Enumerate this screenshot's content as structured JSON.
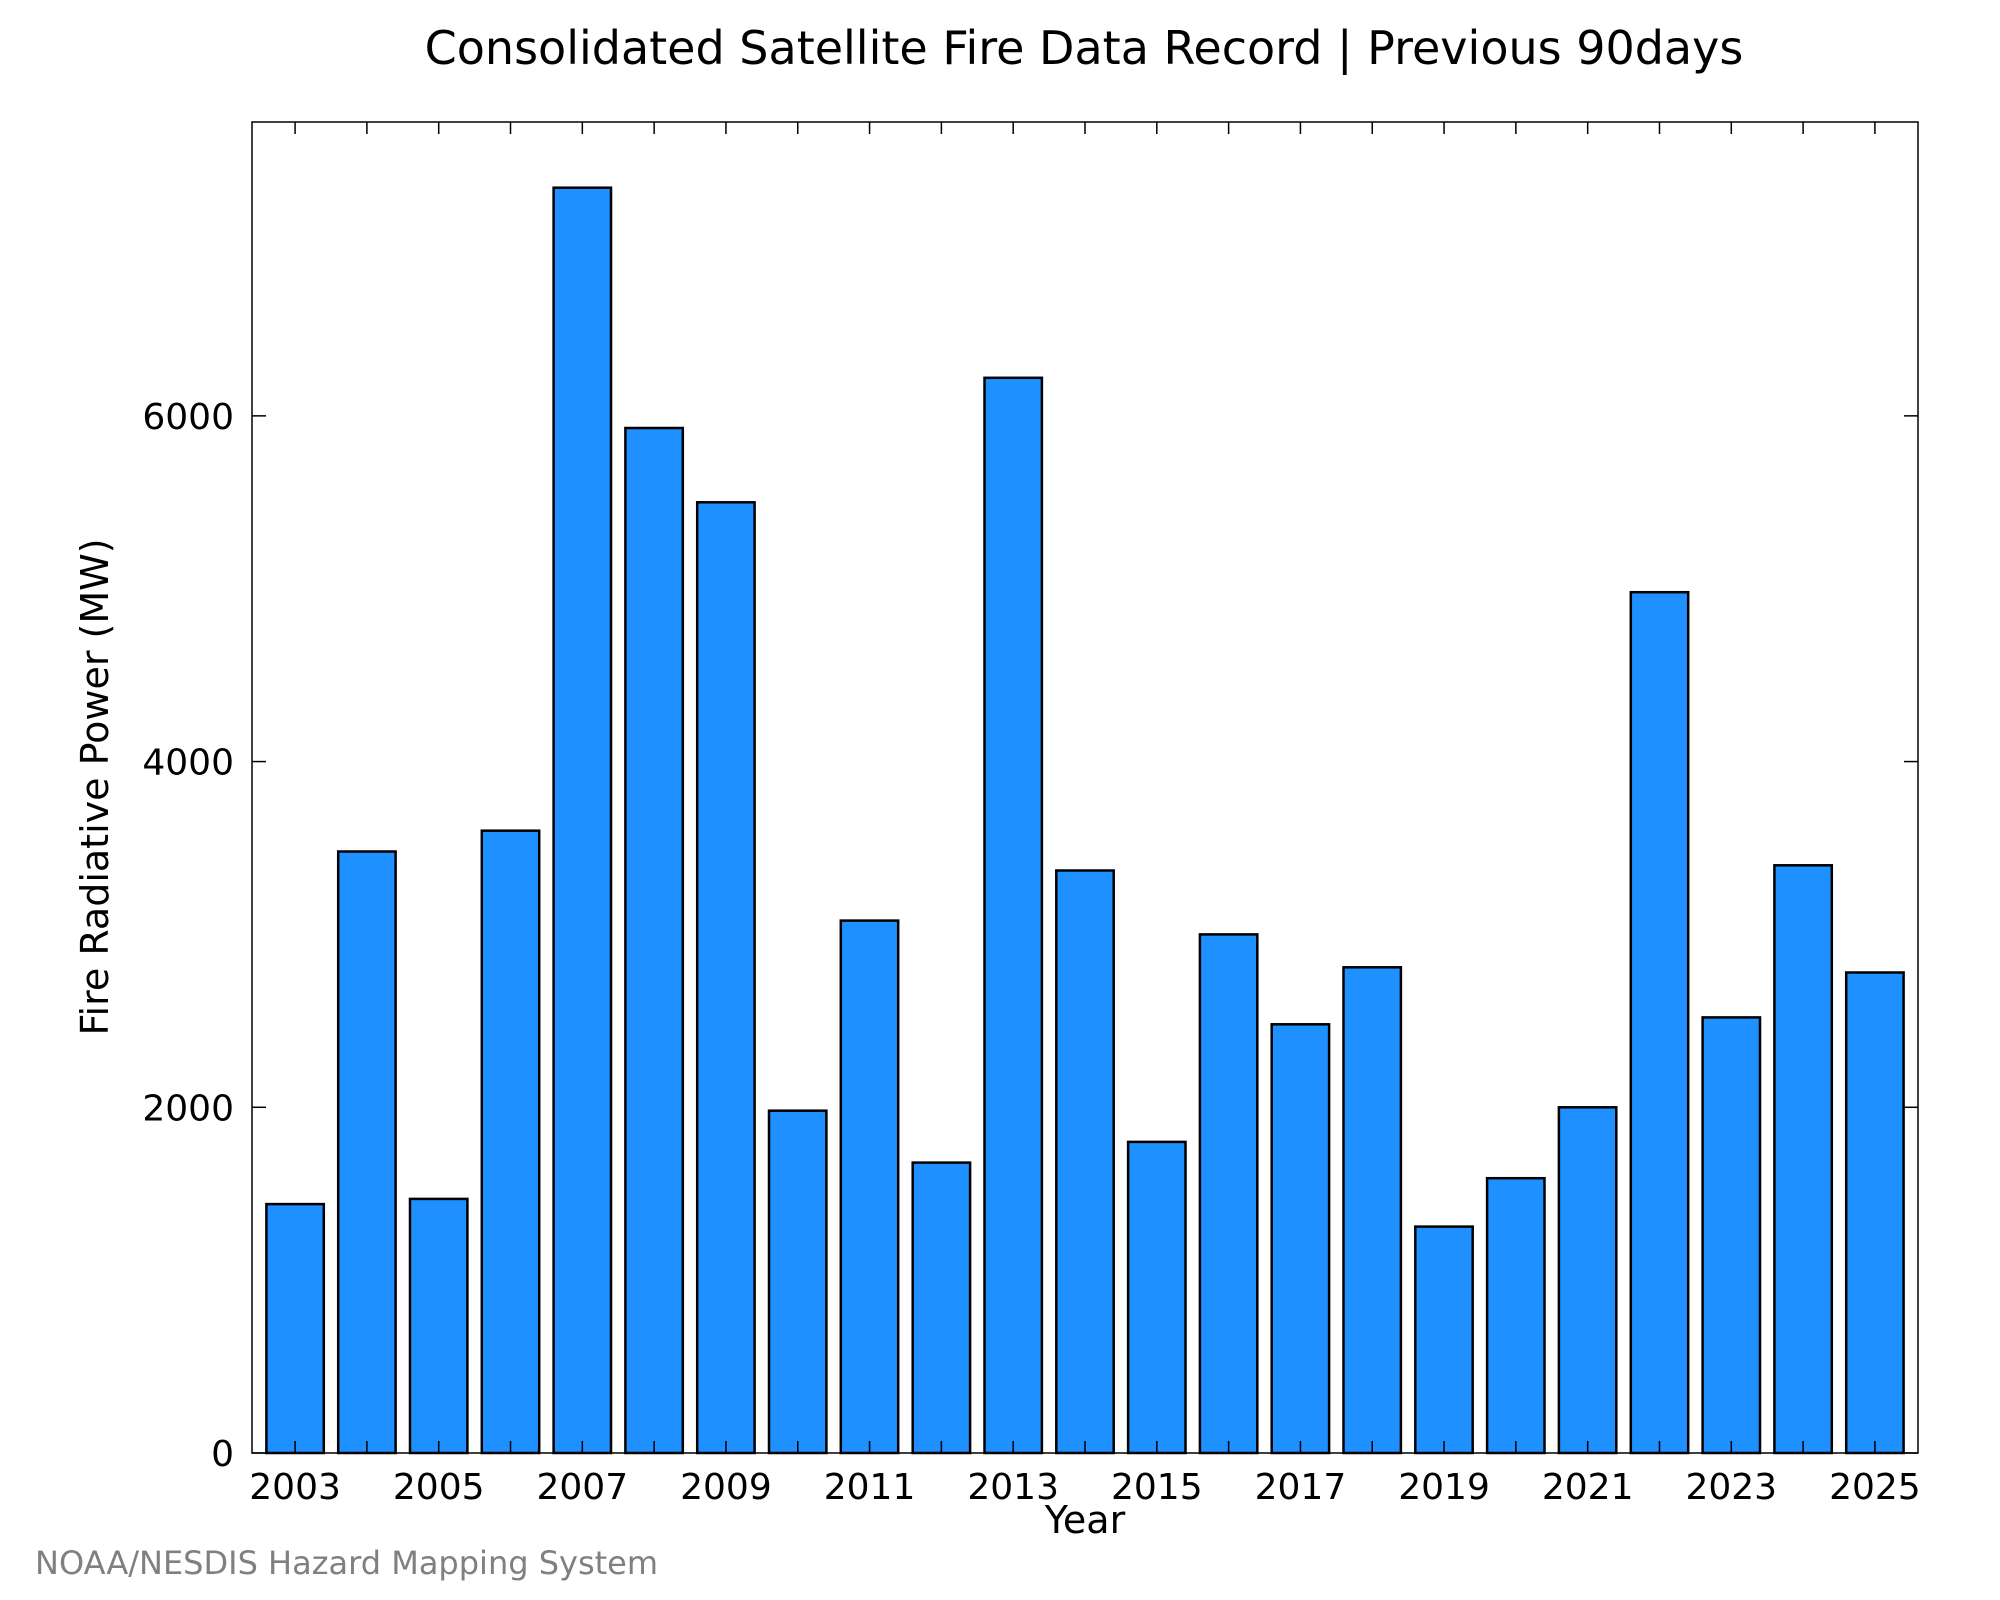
{
  "chart_data": {
    "type": "bar",
    "title": "Consolidated Satellite Fire Data Record | Previous 90days",
    "xlabel": "Year",
    "ylabel": "Fire Radiative Power (MW)",
    "categories": [
      "2003",
      "2004",
      "2005",
      "2006",
      "2007",
      "2008",
      "2009",
      "2010",
      "2011",
      "2012",
      "2013",
      "2014",
      "2015",
      "2016",
      "2017",
      "2018",
      "2019",
      "2020",
      "2021",
      "2022",
      "2023",
      "2024",
      "2025"
    ],
    "values": [
      1440,
      3480,
      1470,
      3600,
      7320,
      5930,
      5500,
      1980,
      3080,
      1680,
      6220,
      3370,
      1800,
      3000,
      2480,
      2810,
      1310,
      1590,
      2000,
      4980,
      2520,
      3400,
      2780
    ],
    "x_tick_labels": [
      "2003",
      "2005",
      "2007",
      "2009",
      "2011",
      "2013",
      "2015",
      "2017",
      "2019",
      "2021",
      "2023",
      "2025"
    ],
    "y_ticks": [
      0,
      2000,
      4000,
      6000
    ],
    "ylim": [
      0,
      7700
    ],
    "grid": false,
    "bar_color": "#1E90FF",
    "bar_edge_color": "#000000"
  },
  "credit": "NOAA/NESDIS Hazard Mapping System"
}
